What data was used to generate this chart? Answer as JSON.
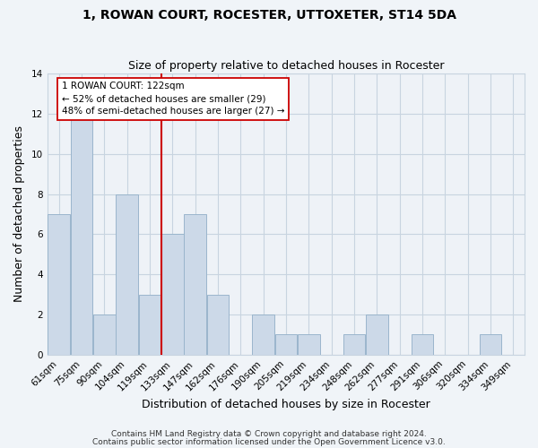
{
  "title": "1, ROWAN COURT, ROCESTER, UTTOXETER, ST14 5DA",
  "subtitle": "Size of property relative to detached houses in Rocester",
  "xlabel": "Distribution of detached houses by size in Rocester",
  "ylabel": "Number of detached properties",
  "bar_labels": [
    "61sqm",
    "75sqm",
    "90sqm",
    "104sqm",
    "119sqm",
    "133sqm",
    "147sqm",
    "162sqm",
    "176sqm",
    "190sqm",
    "205sqm",
    "219sqm",
    "234sqm",
    "248sqm",
    "262sqm",
    "277sqm",
    "291sqm",
    "306sqm",
    "320sqm",
    "334sqm",
    "349sqm"
  ],
  "bar_values": [
    7,
    12,
    2,
    8,
    3,
    6,
    7,
    3,
    0,
    2,
    1,
    1,
    0,
    1,
    2,
    0,
    1,
    0,
    0,
    1,
    0
  ],
  "bar_color": "#ccd9e8",
  "bar_edge_color": "#9ab5cc",
  "vline_x": 4.5,
  "vline_color": "#cc0000",
  "annotation_title": "1 ROWAN COURT: 122sqm",
  "annotation_line1": "← 52% of detached houses are smaller (29)",
  "annotation_line2": "48% of semi-detached houses are larger (27) →",
  "annotation_box_facecolor": "#ffffff",
  "annotation_box_edgecolor": "#cc0000",
  "ylim": [
    0,
    14
  ],
  "yticks": [
    0,
    2,
    4,
    6,
    8,
    10,
    12,
    14
  ],
  "footer1": "Contains HM Land Registry data © Crown copyright and database right 2024.",
  "footer2": "Contains public sector information licensed under the Open Government Licence v3.0.",
  "background_color": "#f0f4f8",
  "plot_bg_color": "#eef2f7",
  "grid_color": "#c8d4e0",
  "title_fontsize": 10,
  "subtitle_fontsize": 9,
  "xlabel_fontsize": 9,
  "ylabel_fontsize": 9,
  "tick_fontsize": 7.5,
  "footer_fontsize": 6.5
}
